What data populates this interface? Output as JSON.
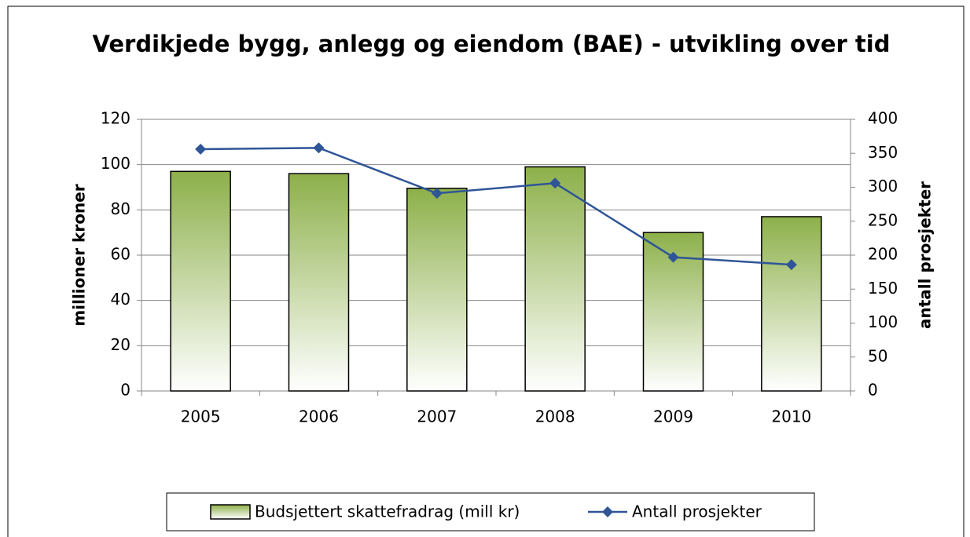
{
  "chart_data": {
    "type": "bar_line",
    "title": "Verdikjede bygg, anlegg og eiendom (BAE) - utvikling over tid",
    "ylabel": "millioner kroner",
    "y2label": "antall prosjekter",
    "categories": [
      "2005",
      "2006",
      "2007",
      "2008",
      "2009",
      "2010"
    ],
    "series": [
      {
        "name": "Budsjettert skattefradrag (mill kr)",
        "type": "bar",
        "color": "#8db04a",
        "values": [
          97,
          96,
          89.5,
          99,
          70,
          77
        ]
      },
      {
        "name": "Antall prosjekter",
        "type": "line",
        "axis": "y2",
        "color": "#2f5597",
        "values": [
          356,
          358,
          291,
          306,
          197,
          186
        ]
      }
    ],
    "ylim": [
      0,
      120
    ],
    "yticks": [
      0,
      20,
      40,
      60,
      80,
      100,
      120
    ],
    "y2lim": [
      0,
      400
    ],
    "y2ticks": [
      0,
      50,
      100,
      150,
      200,
      250,
      300,
      350,
      400
    ],
    "grid": true,
    "legend": "bottom"
  }
}
